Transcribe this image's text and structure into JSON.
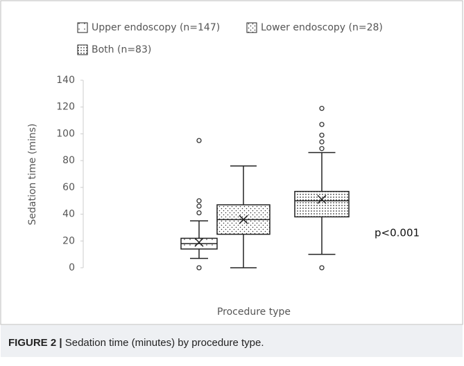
{
  "chart_data": {
    "type": "box",
    "series": [
      {
        "name": "Upper endoscopy (n=147)",
        "whisker_low": 7,
        "q1": 14,
        "median": 18,
        "q3": 22,
        "whisker_high": 35,
        "mean": 19,
        "outliers": [
          0,
          41,
          46,
          50,
          95
        ]
      },
      {
        "name": "Lower endoscopy (n=28)",
        "whisker_low": 0,
        "q1": 25,
        "median": 36,
        "q3": 47,
        "whisker_high": 76,
        "mean": 36,
        "outliers": []
      },
      {
        "name": "Both (n=83)",
        "whisker_low": 10,
        "q1": 38,
        "median": 50,
        "q3": 57,
        "whisker_high": 86,
        "mean": 51,
        "outliers": [
          0,
          89,
          94,
          99,
          107,
          119
        ]
      }
    ],
    "ylabel": "Sedation time (mins)",
    "xlabel": "Procedure type",
    "ylim": [
      0,
      140
    ],
    "yticks": [
      0,
      20,
      40,
      60,
      80,
      100,
      120,
      140
    ],
    "annotation": "p<0.001"
  },
  "caption": {
    "label": "FIGURE 2 |",
    "text": "Sedation time (minutes) by procedure type."
  }
}
